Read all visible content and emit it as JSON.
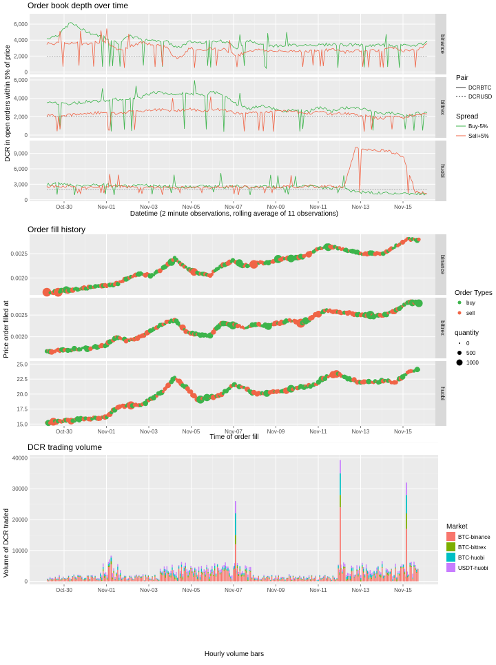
{
  "chart_data": [
    {
      "type": "line",
      "title": "Order book depth over time",
      "xlabel": "Datetime (2 minute observations, rolling average of 11 observations)",
      "ylabel": "DCR in open orders within 5% of price",
      "x_ticks": [
        "Oct-30",
        "Nov-01",
        "Nov-03",
        "Nov-05",
        "Nov-07",
        "Nov-09",
        "Nov-11",
        "Nov-13",
        "Nov-15"
      ],
      "facets": [
        {
          "name": "binance",
          "y_ticks": [
            0,
            2000,
            4000,
            6000
          ],
          "y_tick_labels": [
            "0",
            "2,000",
            "4,000",
            "6,000"
          ],
          "ylim": [
            -300,
            7300
          ],
          "reference_line": 2000,
          "series": [
            {
              "spread": "Buy-5%",
              "pair": "DCRBTC",
              "values": [
                4200,
                4700,
                6200,
                5300,
                4700,
                4300,
                3600,
                4500,
                4100,
                4000,
                3900,
                3000,
                3800,
                3700,
                4000,
                3800,
                3000,
                3900,
                3600,
                3300,
                3300,
                3400,
                3400,
                3400,
                3500,
                3400,
                3400,
                3300,
                3400,
                3300,
                3300,
                3400,
                3700
              ]
            },
            {
              "spread": "Sell+5%",
              "pair": "DCRBTC",
              "values": [
                3600,
                3600,
                3700,
                3500,
                3700,
                3800,
                2700,
                3200,
                3700,
                3400,
                3200,
                1500,
                3000,
                2800,
                3000,
                2800,
                2000,
                2700,
                2800,
                2600,
                2600,
                2700,
                2600,
                2700,
                2800,
                2500,
                2700,
                2800,
                2700,
                3000,
                2700,
                2700,
                3400
              ]
            },
            {
              "spread": "Buy-5%",
              "pair": "DCRUSD",
              "values": [
                2000,
                2000,
                2000,
                2000,
                2000,
                2000,
                2000,
                2000,
                2000,
                2000,
                2000,
                2000,
                2000,
                2000,
                2000,
                2000,
                2000,
                2000,
                2000,
                2000,
                2000,
                2000,
                2000,
                2000,
                2000,
                2000,
                2000,
                2000,
                2000,
                2000,
                2000,
                2000,
                2000
              ]
            }
          ]
        },
        {
          "name": "bittrex",
          "y_ticks": [
            0,
            2000,
            4000,
            6000
          ],
          "y_tick_labels": [
            "0",
            "2,000",
            "4,000",
            "6,000"
          ],
          "ylim": [
            -300,
            6300
          ],
          "reference_line": 2000,
          "series": [
            {
              "spread": "Buy-5%",
              "pair": "DCRBTC",
              "values": [
                3600,
                3500,
                3400,
                3600,
                3700,
                3800,
                3900,
                4000,
                4200,
                4700,
                4500,
                4400,
                4600,
                4300,
                4700,
                4200,
                3300,
                2800,
                3200,
                2900,
                2600,
                2700,
                2600,
                3000,
                2600,
                3000,
                2900,
                2800,
                2300,
                2400,
                2200,
                2300,
                2500
              ]
            },
            {
              "spread": "Sell+5%",
              "pair": "DCRBTC",
              "values": [
                2100,
                2200,
                2200,
                2300,
                2400,
                2500,
                2300,
                2600,
                2600,
                2800,
                2700,
                2700,
                2800,
                2600,
                2800,
                2700,
                2400,
                2400,
                2500,
                2500,
                2600,
                2500,
                2400,
                2500,
                2300,
                2400,
                2200,
                2100,
                1800,
                2000,
                1900,
                2300,
                2300
              ]
            },
            {
              "spread": "Buy-5%",
              "pair": "DCRUSD",
              "values": [
                2000,
                2000,
                2000,
                2000,
                2000,
                2000,
                2000,
                2000,
                2000,
                2000,
                2000,
                2000,
                2000,
                2000,
                2000,
                2000,
                2000,
                2000,
                2000,
                2000,
                2000,
                2000,
                2000,
                2000,
                2000,
                2000,
                2000,
                2000,
                2000,
                2000,
                2000,
                2000,
                2000
              ]
            }
          ]
        },
        {
          "name": "huobi",
          "y_ticks": [
            0,
            3000,
            6000,
            9000
          ],
          "y_tick_labels": [
            "0",
            "3,000",
            "6,000",
            "9,000"
          ],
          "ylim": [
            -300,
            11500
          ],
          "reference_line": 2000,
          "series": [
            {
              "spread": "Buy-5%",
              "pair": "DCRBTC",
              "values": [
                2900,
                3100,
                2800,
                2600,
                3000,
                2900,
                2700,
                2600,
                2800,
                2700,
                2600,
                2500,
                2400,
                2600,
                2700,
                2500,
                2600,
                2400,
                2500,
                2600,
                2400,
                2500,
                2600,
                2400,
                2300,
                2400,
                1500,
                1400,
                1300,
                1300,
                1200,
                1200,
                1100
              ]
            },
            {
              "spread": "Sell+5%",
              "pair": "DCRBTC",
              "values": [
                2600,
                2500,
                2700,
                2200,
                2500,
                2600,
                2600,
                2500,
                2300,
                2500,
                2400,
                2300,
                2400,
                2500,
                2400,
                2600,
                2500,
                2400,
                2400,
                2300,
                2500,
                2400,
                2700,
                2500,
                2600,
                2400,
                10200,
                9800,
                9600,
                9300,
                8500,
                1500,
                1300
              ]
            },
            {
              "spread": "Buy-5%",
              "pair": "DCRUSD",
              "values": [
                2000,
                2000,
                2000,
                2000,
                2000,
                2000,
                2000,
                2000,
                2000,
                2000,
                2000,
                2000,
                2000,
                2000,
                2000,
                2000,
                2000,
                2000,
                2000,
                2000,
                2000,
                2000,
                2000,
                2000,
                2000,
                2000,
                2000,
                2000,
                2000,
                2000,
                2000,
                2000,
                2000
              ]
            }
          ]
        }
      ],
      "legend": {
        "pair_title": "Pair",
        "pair_items": [
          "DCRBTC",
          "DCRUSD"
        ],
        "spread_title": "Spread",
        "spread_items": [
          "Buy-5%",
          "Sell+5%"
        ]
      },
      "colors": {
        "buy": "#3cb44b",
        "sell": "#f06446",
        "ref": "#999999"
      }
    },
    {
      "type": "scatter",
      "title": "Order fill history",
      "xlabel": "Time of order fill",
      "ylabel": "Price order filled at",
      "x_ticks": [
        "Oct-30",
        "Nov-01",
        "Nov-03",
        "Nov-05",
        "Nov-07",
        "Nov-09",
        "Nov-11",
        "Nov-13",
        "Nov-15"
      ],
      "facets": [
        {
          "name": "binance",
          "y_ticks": [
            0.002,
            0.0025
          ],
          "y_tick_labels": [
            "0.0020",
            "0.0025"
          ],
          "ylim": [
            0.00165,
            0.0029
          ],
          "values": [
            0.0017,
            0.00172,
            0.00175,
            0.00178,
            0.00182,
            0.00184,
            0.00188,
            0.002,
            0.0021,
            0.00205,
            0.0022,
            0.0024,
            0.0022,
            0.0021,
            0.00205,
            0.00225,
            0.00235,
            0.00225,
            0.0023,
            0.00232,
            0.00238,
            0.0024,
            0.00245,
            0.00255,
            0.00265,
            0.00262,
            0.00255,
            0.0025,
            0.0025,
            0.00252,
            0.00265,
            0.0028,
            0.00278
          ]
        },
        {
          "name": "bittrex",
          "y_ticks": [
            0.002,
            0.0025
          ],
          "y_tick_labels": [
            "0.0020",
            "0.0025"
          ],
          "ylim": [
            0.0015,
            0.0029
          ],
          "values": [
            0.00165,
            0.00168,
            0.0017,
            0.00172,
            0.00175,
            0.0018,
            0.00198,
            0.0019,
            0.002,
            0.00215,
            0.0023,
            0.00238,
            0.00212,
            0.00205,
            0.00202,
            0.0023,
            0.00228,
            0.0022,
            0.00228,
            0.00225,
            0.00232,
            0.00238,
            0.0023,
            0.00248,
            0.00262,
            0.00255,
            0.00255,
            0.0025,
            0.00248,
            0.0025,
            0.0026,
            0.0028,
            0.00278
          ]
        },
        {
          "name": "huobi",
          "y_ticks": [
            15,
            17.5,
            20,
            22.5,
            25
          ],
          "y_tick_labels": [
            "15.0",
            "17.5",
            "20.0",
            "22.5",
            "25.0"
          ],
          "ylim": [
            14.7,
            25.5
          ],
          "values": [
            15.2,
            15.4,
            15.6,
            15.8,
            16.0,
            16.0,
            17.8,
            18.2,
            18.0,
            19.2,
            20.5,
            22.8,
            21.0,
            19.0,
            19.5,
            19.8,
            21.5,
            21.0,
            20.0,
            20.2,
            20.5,
            20.8,
            21.2,
            21.5,
            22.8,
            23.5,
            22.5,
            22.0,
            22.0,
            22.2,
            22.0,
            23.5,
            24.2
          ]
        }
      ],
      "legend": {
        "type_title": "Order Types",
        "type_items": [
          "buy",
          "sell"
        ],
        "qty_title": "quantity",
        "qty_items": [
          "0",
          "500",
          "1000"
        ]
      }
    },
    {
      "type": "bar",
      "title": "DCR trading volume",
      "xlabel": "Hourly volume bars",
      "ylabel": "Volume of DCR traded",
      "x_ticks": [
        "Oct-30",
        "Nov-01",
        "Nov-03",
        "Nov-05",
        "Nov-07",
        "Nov-09",
        "Nov-11",
        "Nov-13",
        "Nov-15"
      ],
      "y_ticks": [
        0,
        10000,
        20000,
        30000,
        40000
      ],
      "y_tick_labels": [
        "0",
        "10000",
        "20000",
        "30000",
        "40000"
      ],
      "ylim": [
        -1000,
        41000
      ],
      "series_names": [
        "BTC-binance",
        "BTC-bittrex",
        "BTC-huobi",
        "USDT-huobi"
      ],
      "colors": [
        "#f8766d",
        "#7cae00",
        "#00bfc4",
        "#c77cff"
      ],
      "spikes": [
        {
          "x": "Nov-07",
          "values": [
            12000,
            3000,
            7000,
            4000
          ]
        },
        {
          "x": "Nov-12",
          "values": [
            24000,
            4000,
            7000,
            4300
          ]
        },
        {
          "x": "Nov-15",
          "values": [
            17000,
            5000,
            6000,
            4000
          ]
        },
        {
          "x": "Nov-01",
          "values": [
            5500,
            1000,
            1200,
            600
          ]
        }
      ],
      "legend": {
        "title": "Market",
        "items": [
          "BTC-binance",
          "BTC-bittrex",
          "BTC-huobi",
          "USDT-huobi"
        ]
      }
    }
  ]
}
